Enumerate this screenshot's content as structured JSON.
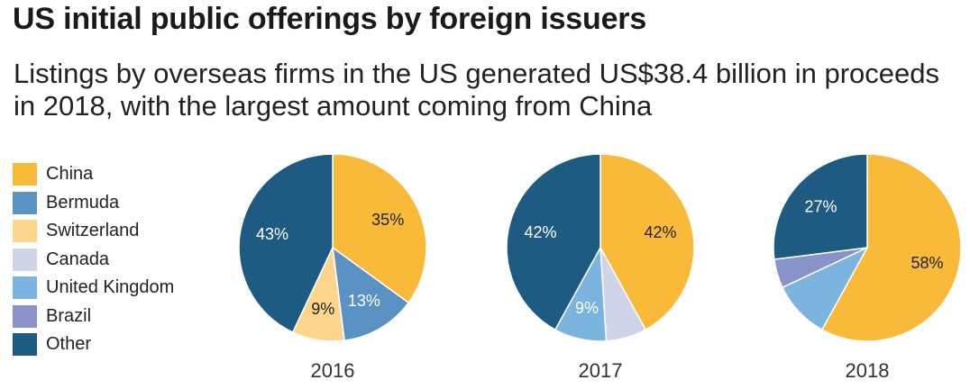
{
  "title": "US initial public offerings by foreign issuers",
  "subtitle": "Listings by overseas firms in the US generated US$38.4 billion in proceeds in 2018, with the largest amount coming from China",
  "chart_data": {
    "type": "pie",
    "legend_position": "left",
    "legend": [
      {
        "name": "China",
        "color": "#F9BA3A"
      },
      {
        "name": "Bermuda",
        "color": "#5A93C3"
      },
      {
        "name": "Switzerland",
        "color": "#FCD68C"
      },
      {
        "name": "Canada",
        "color": "#CFD4E8"
      },
      {
        "name": "United Kingdom",
        "color": "#7CB4E0"
      },
      {
        "name": "Brazil",
        "color": "#8A93C9"
      },
      {
        "name": "Other",
        "color": "#1D5B82"
      }
    ],
    "charts": [
      {
        "year": "2016",
        "slices": [
          {
            "name": "China",
            "value": 35,
            "label": "35%"
          },
          {
            "name": "Bermuda",
            "value": 13,
            "label": "13%"
          },
          {
            "name": "Switzerland",
            "value": 9,
            "label": "9%"
          },
          {
            "name": "Other",
            "value": 43,
            "label": "43%"
          }
        ]
      },
      {
        "year": "2017",
        "slices": [
          {
            "name": "China",
            "value": 42,
            "label": "42%"
          },
          {
            "name": "Canada",
            "value": 7,
            "label": ""
          },
          {
            "name": "United Kingdom",
            "value": 9,
            "label": "9%"
          },
          {
            "name": "Other",
            "value": 42,
            "label": "42%"
          }
        ]
      },
      {
        "year": "2018",
        "slices": [
          {
            "name": "China",
            "value": 58,
            "label": "58%"
          },
          {
            "name": "United Kingdom",
            "value": 10,
            "label": ""
          },
          {
            "name": "Brazil",
            "value": 5,
            "label": ""
          },
          {
            "name": "Other",
            "value": 27,
            "label": "27%"
          }
        ]
      }
    ]
  }
}
